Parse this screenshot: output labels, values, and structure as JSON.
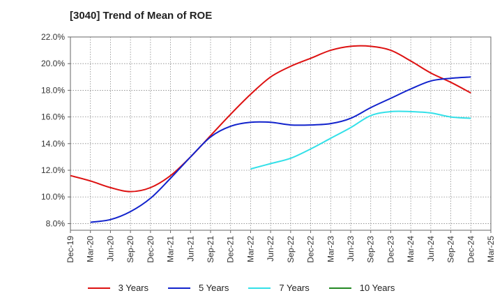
{
  "chart_data": {
    "type": "line",
    "title": "[3040]  Trend of Mean of ROE",
    "x_labels": [
      "Dec-19",
      "Mar-20",
      "Jun-20",
      "Sep-20",
      "Dec-20",
      "Mar-21",
      "Jun-21",
      "Sep-21",
      "Dec-21",
      "Mar-22",
      "Jun-22",
      "Sep-22",
      "Dec-22",
      "Mar-23",
      "Jun-23",
      "Sep-23",
      "Dec-23",
      "Mar-24",
      "Jun-24",
      "Sep-24",
      "Dec-24",
      "Mar-25"
    ],
    "y_ticks": [
      "8.0%",
      "10.0%",
      "12.0%",
      "14.0%",
      "16.0%",
      "18.0%",
      "20.0%",
      "22.0%"
    ],
    "ylim": [
      7.5,
      22.0
    ],
    "grid": true,
    "legend_position": "bottom",
    "series": [
      {
        "name": "3 Years",
        "color": "#dd1111",
        "values": [
          11.6,
          11.2,
          10.7,
          10.4,
          10.7,
          11.6,
          13.0,
          14.6,
          16.2,
          17.7,
          19.0,
          19.8,
          20.4,
          21.0,
          21.3,
          21.3,
          21.0,
          20.2,
          19.3,
          18.6,
          17.8,
          null
        ]
      },
      {
        "name": "5 Years",
        "color": "#1122cc",
        "values": [
          null,
          8.1,
          8.3,
          8.9,
          9.9,
          11.4,
          13.0,
          14.5,
          15.3,
          15.6,
          15.6,
          15.4,
          15.4,
          15.5,
          15.9,
          16.7,
          17.4,
          18.1,
          18.7,
          18.9,
          19.0,
          null
        ]
      },
      {
        "name": "7 Years",
        "color": "#33e0e8",
        "values": [
          null,
          null,
          null,
          null,
          null,
          null,
          null,
          null,
          null,
          12.1,
          12.5,
          12.9,
          13.6,
          14.4,
          15.2,
          16.1,
          16.4,
          16.4,
          16.3,
          16.0,
          15.9,
          null
        ]
      },
      {
        "name": "10 Years",
        "color": "#228822",
        "values": [
          null,
          null,
          null,
          null,
          null,
          null,
          null,
          null,
          null,
          null,
          null,
          null,
          null,
          null,
          null,
          null,
          null,
          null,
          null,
          null,
          null,
          null
        ]
      }
    ]
  }
}
